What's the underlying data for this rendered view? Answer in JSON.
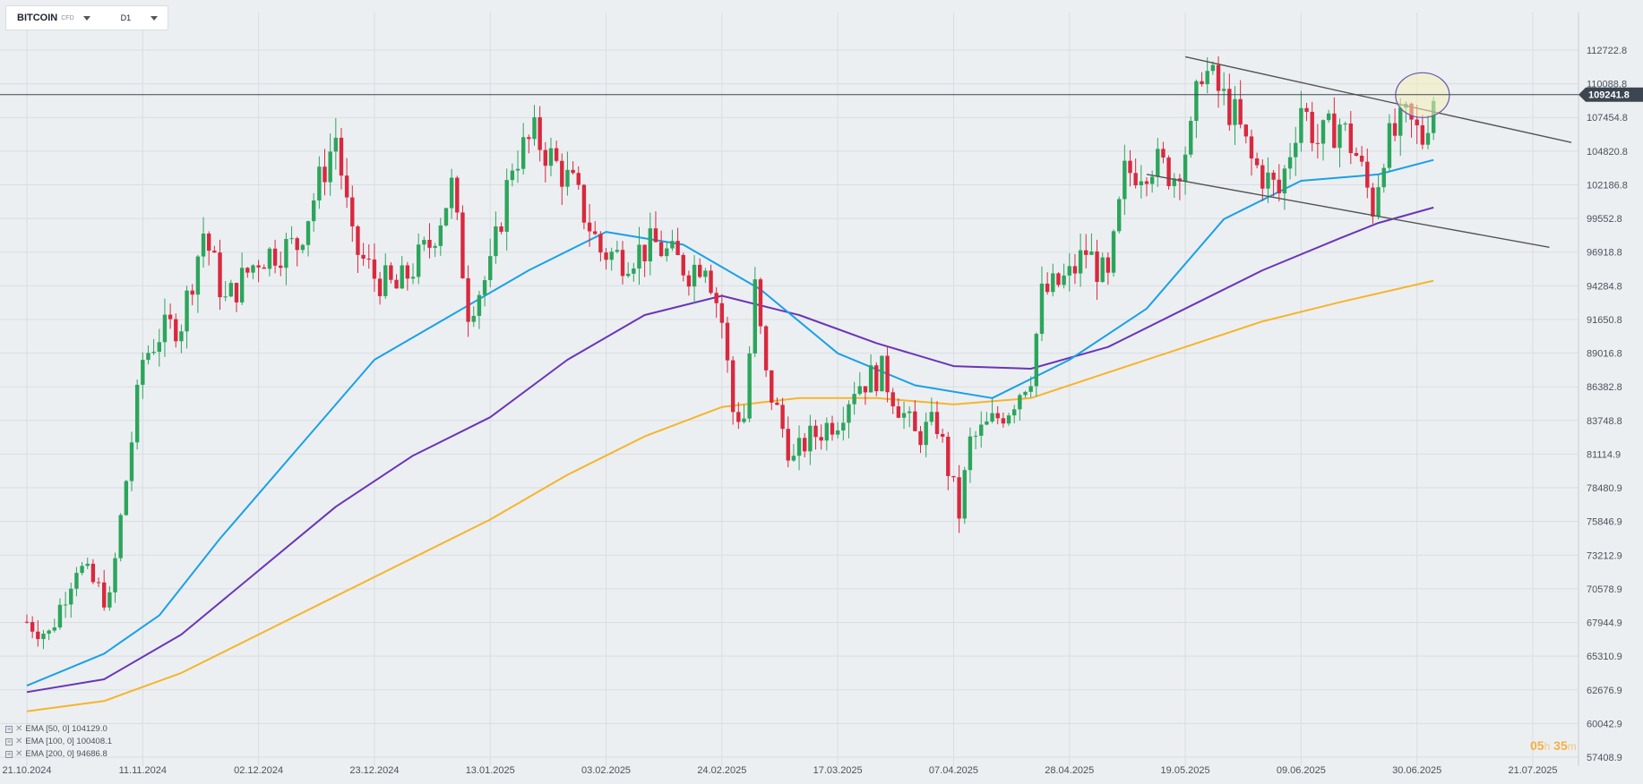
{
  "header": {
    "symbol": "BITCOIN",
    "instrument_type": "CFD",
    "timeframe": "D1"
  },
  "legend": [
    {
      "label": "EMA [50, 0] 104129.0",
      "color": "#1aa0e8"
    },
    {
      "label": "EMA [100, 0] 100408.1",
      "color": "#6a35b8"
    },
    {
      "label": "EMA [200, 0] 94686.8",
      "color": "#f6b42a"
    }
  ],
  "timer": {
    "hours": "05",
    "hours_unit": "h",
    "minutes": "35",
    "minutes_unit": "m"
  },
  "chart_data": {
    "type": "candlestick",
    "title": "",
    "current_price": "109241.8",
    "price_line": 109241.8,
    "y_ticks": [
      57408.9,
      60042.9,
      62676.9,
      65310.9,
      67944.9,
      70578.9,
      73212.9,
      75846.9,
      78480.9,
      81114.9,
      83748.8,
      86382.8,
      89016.8,
      91650.8,
      94284.8,
      96918.8,
      99552.8,
      102186.8,
      104820.8,
      107454.8,
      110088.8,
      112722.8
    ],
    "y_tick_labels": [
      "57408.9",
      "60042.9",
      "62676.9",
      "65310.9",
      "67944.9",
      "70578.9",
      "73212.9",
      "75846.9",
      "78480.9",
      "81114.9",
      "83748.8",
      "86382.8",
      "89016.8",
      "91650.8",
      "94284.8",
      "96918.8",
      "99552.8",
      "102186.8",
      "104820.8",
      "107454.8",
      "110088.8",
      "112722.8"
    ],
    "x_labels": [
      "21.10.2024",
      "11.11.2024",
      "02.12.2024",
      "23.12.2024",
      "13.01.2025",
      "03.02.2025",
      "24.02.2025",
      "17.03.2025",
      "07.04.2025",
      "28.04.2025",
      "19.05.2025",
      "09.06.2025",
      "30.06.2025",
      "21.07.2025"
    ],
    "colors": {
      "up": "#2ca55c",
      "down": "#d8293e",
      "grid": "#d9dde2",
      "ema50": "#1aa0e8",
      "ema100": "#6a35b8",
      "ema200": "#f6b42a",
      "trend": "#555555",
      "highlight": "#f5eeb8",
      "highlight_stroke": "#6a55b0",
      "price_tag": "#3c4650"
    },
    "candle_anchors": [
      [
        "21.10.2024",
        68000
      ],
      [
        "25.10.2024",
        67000
      ],
      [
        "30.10.2024",
        72500
      ],
      [
        "05.11.2024",
        69500
      ],
      [
        "07.11.2024",
        76000
      ],
      [
        "11.11.2024",
        88500
      ],
      [
        "14.11.2024",
        90500
      ],
      [
        "18.11.2024",
        91500
      ],
      [
        "22.11.2024",
        98500
      ],
      [
        "26.11.2024",
        93000
      ],
      [
        "02.12.2024",
        96500
      ],
      [
        "05.12.2024",
        97000
      ],
      [
        "09.12.2024",
        97500
      ],
      [
        "16.12.2024",
        106000
      ],
      [
        "19.12.2024",
        97500
      ],
      [
        "23.12.2024",
        95000
      ],
      [
        "27.12.2024",
        94000
      ],
      [
        "02.01.2025",
        97500
      ],
      [
        "06.01.2025",
        102000
      ],
      [
        "09.01.2025",
        92500
      ],
      [
        "13.01.2025",
        95500
      ],
      [
        "17.01.2025",
        104000
      ],
      [
        "21.01.2025",
        106000
      ],
      [
        "28.01.2025",
        102000
      ],
      [
        "02.02.2025",
        97000
      ],
      [
        "06.02.2025",
        96500
      ],
      [
        "12.02.2025",
        97500
      ],
      [
        "18.02.2025",
        95500
      ],
      [
        "21.02.2025",
        96500
      ],
      [
        "24.02.2025",
        91500
      ],
      [
        "26.02.2025",
        84500
      ],
      [
        "28.02.2025",
        84000
      ],
      [
        "02.03.2025",
        94000
      ],
      [
        "04.03.2025",
        87000
      ],
      [
        "09.03.2025",
        80500
      ],
      [
        "11.03.2025",
        82000
      ],
      [
        "17.03.2025",
        84000
      ],
      [
        "20.03.2025",
        86500
      ],
      [
        "25.03.2025",
        87500
      ],
      [
        "31.03.2025",
        82500
      ],
      [
        "04.04.2025",
        83500
      ],
      [
        "08.04.2025",
        76500
      ],
      [
        "10.04.2025",
        82000
      ],
      [
        "17.04.2025",
        84800
      ],
      [
        "21.04.2025",
        87500
      ],
      [
        "23.04.2025",
        93500
      ],
      [
        "28.04.2025",
        95000
      ],
      [
        "01.05.2025",
        97000
      ],
      [
        "05.05.2025",
        94500
      ],
      [
        "08.05.2025",
        103000
      ],
      [
        "13.05.2025",
        104000
      ],
      [
        "17.05.2025",
        103000
      ],
      [
        "20.05.2025",
        106000
      ],
      [
        "22.05.2025",
        111500
      ],
      [
        "28.05.2025",
        107500
      ],
      [
        "31.05.2025",
        104000
      ],
      [
        "05.06.2025",
        101500
      ],
      [
        "09.06.2025",
        108500
      ],
      [
        "12.06.2025",
        105500
      ],
      [
        "16.06.2025",
        107000
      ],
      [
        "19.06.2025",
        104500
      ],
      [
        "22.06.2025",
        100500
      ],
      [
        "24.06.2025",
        105000
      ],
      [
        "28.06.2025",
        107200
      ],
      [
        "01.07.2025",
        105800
      ],
      [
        "03.07.2025",
        109241.8
      ]
    ],
    "ema50_points": [
      [
        "21.10.2024",
        63000
      ],
      [
        "04.11.2024",
        65500
      ],
      [
        "14.11.2024",
        68500
      ],
      [
        "25.11.2024",
        74500
      ],
      [
        "09.12.2024",
        81500
      ],
      [
        "23.12.2024",
        88500
      ],
      [
        "06.01.2025",
        92000
      ],
      [
        "20.01.2025",
        95500
      ],
      [
        "03.02.2025",
        98500
      ],
      [
        "17.02.2025",
        97500
      ],
      [
        "03.03.2025",
        94000
      ],
      [
        "17.03.2025",
        89000
      ],
      [
        "31.03.2025",
        86500
      ],
      [
        "14.04.2025",
        85500
      ],
      [
        "28.04.2025",
        88500
      ],
      [
        "12.05.2025",
        92500
      ],
      [
        "26.05.2025",
        99500
      ],
      [
        "09.06.2025",
        102500
      ],
      [
        "23.06.2025",
        103000
      ],
      [
        "03.07.2025",
        104129
      ]
    ],
    "ema100_points": [
      [
        "21.10.2024",
        62500
      ],
      [
        "04.11.2024",
        63500
      ],
      [
        "18.11.2024",
        67000
      ],
      [
        "02.12.2024",
        72000
      ],
      [
        "16.12.2024",
        77000
      ],
      [
        "30.12.2024",
        81000
      ],
      [
        "13.01.2025",
        84000
      ],
      [
        "27.01.2025",
        88500
      ],
      [
        "10.02.2025",
        92000
      ],
      [
        "24.02.2025",
        93500
      ],
      [
        "10.03.2025",
        92000
      ],
      [
        "24.03.2025",
        89800
      ],
      [
        "07.04.2025",
        88000
      ],
      [
        "21.04.2025",
        87800
      ],
      [
        "05.05.2025",
        89500
      ],
      [
        "19.05.2025",
        92500
      ],
      [
        "02.06.2025",
        95500
      ],
      [
        "16.06.2025",
        98000
      ],
      [
        "23.06.2025",
        99200
      ],
      [
        "03.07.2025",
        100408.1
      ]
    ],
    "ema200_points": [
      [
        "21.10.2024",
        61000
      ],
      [
        "04.11.2024",
        61800
      ],
      [
        "18.11.2024",
        64000
      ],
      [
        "02.12.2024",
        67000
      ],
      [
        "16.12.2024",
        70000
      ],
      [
        "30.12.2024",
        73000
      ],
      [
        "13.01.2025",
        76000
      ],
      [
        "27.01.2025",
        79500
      ],
      [
        "10.02.2025",
        82500
      ],
      [
        "24.02.2025",
        84800
      ],
      [
        "10.03.2025",
        85500
      ],
      [
        "24.03.2025",
        85500
      ],
      [
        "07.04.2025",
        85000
      ],
      [
        "21.04.2025",
        85500
      ],
      [
        "05.05.2025",
        87500
      ],
      [
        "19.05.2025",
        89500
      ],
      [
        "02.06.2025",
        91500
      ],
      [
        "16.06.2025",
        93000
      ],
      [
        "03.07.2025",
        94686.8
      ]
    ],
    "trendlines": [
      {
        "from": [
          "19.05.2025",
          112200
        ],
        "to": [
          "28.07.2025",
          105500
        ]
      },
      {
        "from": [
          "12.05.2025",
          103000
        ],
        "to": [
          "24.07.2025",
          97300
        ]
      }
    ],
    "highlight": {
      "date": "01.07.2025",
      "price": 109200
    }
  }
}
